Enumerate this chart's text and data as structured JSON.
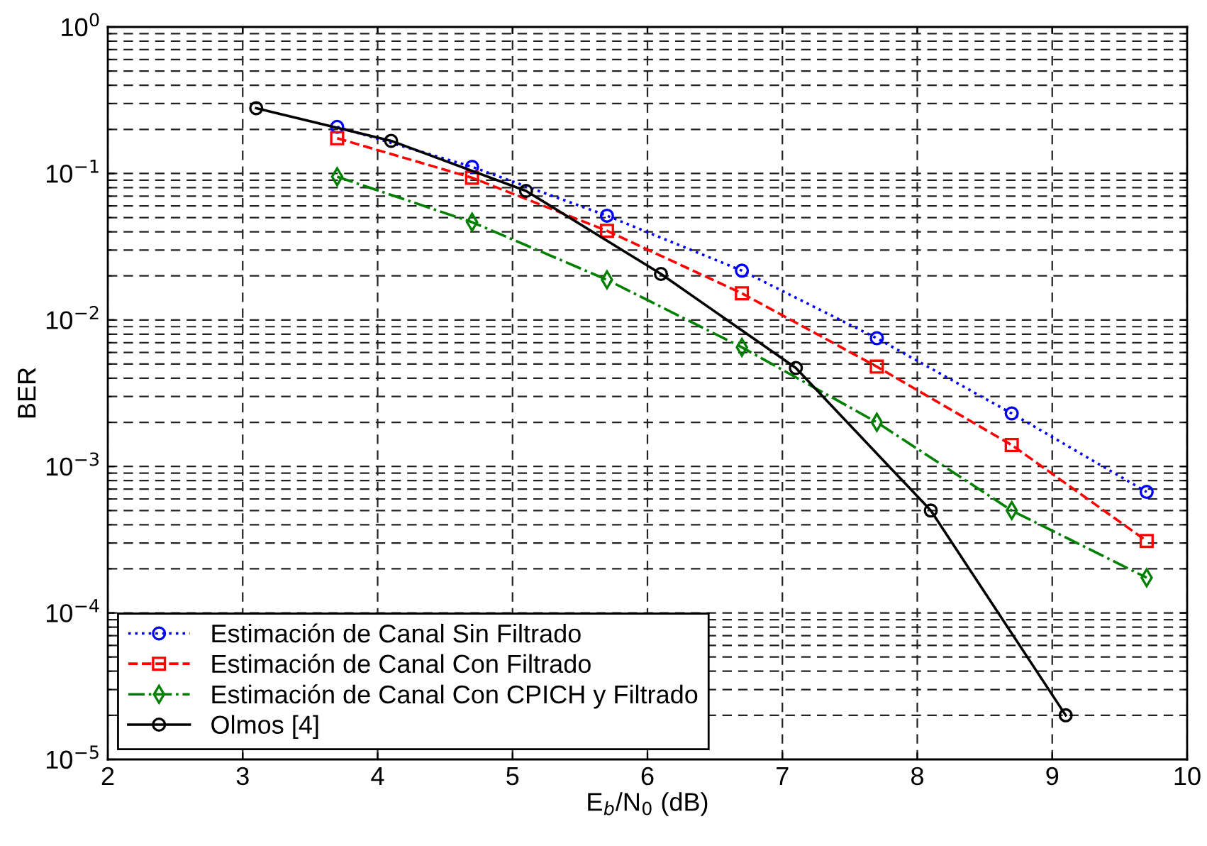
{
  "chart_data": {
    "type": "line",
    "xlabel": "E$_{b}$/N$_{0}$ (dB)",
    "ylabel": "BER",
    "log": "y",
    "grid": true,
    "legend": "bottom left",
    "xlim": [
      2,
      10
    ],
    "xticks": [
      2,
      3,
      4,
      5,
      6,
      7,
      8,
      9,
      10
    ],
    "ylim": [
      1e-05,
      1
    ],
    "yticks": [
      {
        "value": 1e-05,
        "label": "10$^{−5}$"
      },
      {
        "value": 0.0001,
        "label": "10$^{−4}$"
      },
      {
        "value": 0.001,
        "label": "10$^{−3}$"
      },
      {
        "value": 0.01,
        "label": "10$^{−2}$"
      },
      {
        "value": 0.1,
        "label": "10$^{−1}$"
      },
      {
        "value": 1,
        "label": "10$^{0}$"
      }
    ],
    "series": [
      {
        "name": "Estimación de Canal Sin Filtrado",
        "color": "#0000ff",
        "marker": "circle",
        "line_style": "dotted",
        "x": [
          3.7,
          4.7,
          5.7,
          6.7,
          7.7,
          8.7,
          9.7
        ],
        "values": [
          0.208,
          0.111,
          0.0515,
          0.0217,
          0.0075,
          0.0023,
          0.00067
        ]
      },
      {
        "name": "Estimación de Canal Con Filtrado",
        "color": "#ff0000",
        "marker": "square",
        "line_style": "dashed",
        "x": [
          3.7,
          4.7,
          5.7,
          6.7,
          7.7,
          8.7,
          9.7
        ],
        "values": [
          0.174,
          0.0935,
          0.0406,
          0.0152,
          0.0048,
          0.0014,
          0.00031
        ]
      },
      {
        "name": "Estimación de Canal Con CPICH y Filtrado",
        "color": "#008000",
        "marker": "diamond",
        "line_style": "dashdot",
        "x": [
          3.7,
          4.7,
          5.7,
          6.7,
          7.7,
          8.7,
          9.7
        ],
        "values": [
          0.095,
          0.0465,
          0.0188,
          0.0065,
          0.002,
          0.0005,
          0.000174
        ]
      },
      {
        "name": "Olmos [4]",
        "color": "#000000",
        "marker": "circle",
        "line_style": "solid",
        "x": [
          3.1,
          4.1,
          5.1,
          6.1,
          7.1,
          8.1,
          9.1
        ],
        "values": [
          0.279,
          0.167,
          0.076,
          0.0206,
          0.0047,
          0.0005,
          2e-05
        ]
      }
    ]
  }
}
